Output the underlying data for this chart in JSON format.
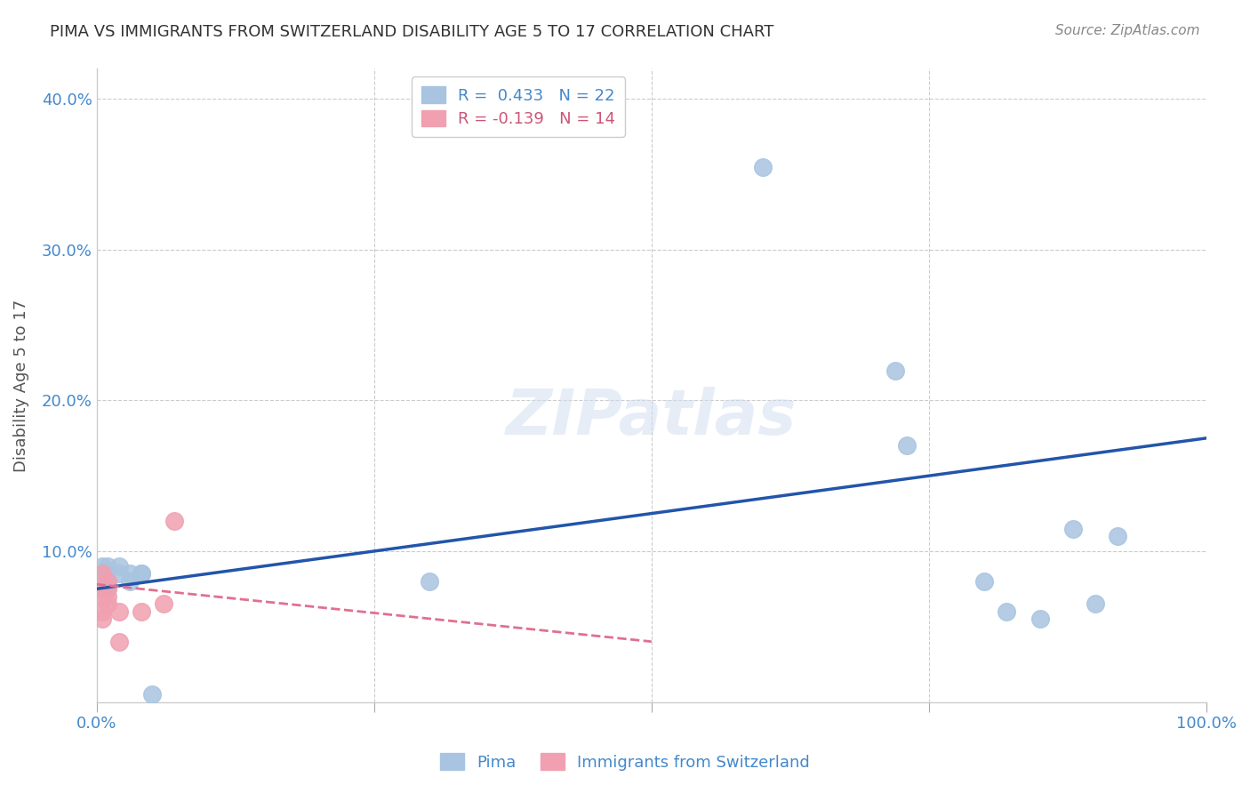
{
  "title": "PIMA VS IMMIGRANTS FROM SWITZERLAND DISABILITY AGE 5 TO 17 CORRELATION CHART",
  "source": "Source: ZipAtlas.com",
  "ylabel": "Disability Age 5 to 17",
  "xlabel": "",
  "legend_blue_label": "Pima",
  "legend_pink_label": "Immigrants from Switzerland",
  "legend_blue_R": "R =  0.433",
  "legend_blue_N": "N = 22",
  "legend_pink_R": "R = -0.139",
  "legend_pink_N": "N = 14",
  "watermark": "ZIPatlas",
  "xlim": [
    0.0,
    1.0
  ],
  "ylim": [
    0.0,
    0.42
  ],
  "xticks": [
    0.0,
    0.25,
    0.5,
    0.75,
    1.0
  ],
  "xticklabels": [
    "0.0%",
    "",
    "",
    "",
    "100.0%"
  ],
  "yticks": [
    0.0,
    0.1,
    0.2,
    0.3,
    0.4
  ],
  "yticklabels": [
    "",
    "10.0%",
    "20.0%",
    "30.0%",
    "40.0%"
  ],
  "blue_x": [
    0.005,
    0.005,
    0.01,
    0.01,
    0.01,
    0.02,
    0.02,
    0.03,
    0.03,
    0.04,
    0.04,
    0.05,
    0.3,
    0.6,
    0.72,
    0.73,
    0.8,
    0.82,
    0.85,
    0.88,
    0.9,
    0.92
  ],
  "blue_y": [
    0.085,
    0.09,
    0.08,
    0.09,
    0.075,
    0.085,
    0.09,
    0.085,
    0.08,
    0.085,
    0.085,
    0.005,
    0.08,
    0.355,
    0.22,
    0.17,
    0.08,
    0.06,
    0.055,
    0.115,
    0.065,
    0.11
  ],
  "pink_x": [
    0.005,
    0.005,
    0.005,
    0.005,
    0.005,
    0.01,
    0.01,
    0.01,
    0.01,
    0.02,
    0.02,
    0.04,
    0.06,
    0.07
  ],
  "pink_y": [
    0.06,
    0.055,
    0.07,
    0.075,
    0.085,
    0.08,
    0.065,
    0.07,
    0.075,
    0.06,
    0.04,
    0.06,
    0.065,
    0.12
  ],
  "blue_line_x": [
    0.0,
    1.0
  ],
  "blue_line_y": [
    0.075,
    0.175
  ],
  "pink_line_x": [
    0.0,
    0.5
  ],
  "pink_line_y": [
    0.078,
    0.04
  ],
  "dot_color_blue": "#a8c4e0",
  "dot_color_pink": "#f0a0b0",
  "line_color_blue": "#2255aa",
  "line_color_pink": "#e07090",
  "grid_color": "#cccccc",
  "bg_color": "#ffffff",
  "title_color": "#333333",
  "axis_label_color": "#555555",
  "tick_color_blue": "#4488cc",
  "legend_pink_text_color": "#cc5577",
  "source_color": "#888888"
}
